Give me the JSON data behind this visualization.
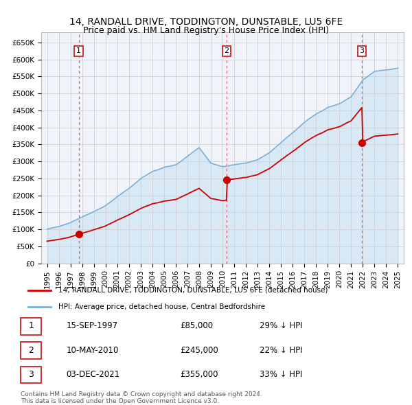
{
  "title": "14, RANDALL DRIVE, TODDINGTON, DUNSTABLE, LU5 6FE",
  "subtitle": "Price paid vs. HM Land Registry's House Price Index (HPI)",
  "title_fontsize": 10.5,
  "subtitle_fontsize": 9.5,
  "xlim": [
    1994.5,
    2025.5
  ],
  "ylim": [
    0,
    680000
  ],
  "yticks": [
    0,
    50000,
    100000,
    150000,
    200000,
    250000,
    300000,
    350000,
    400000,
    450000,
    500000,
    550000,
    600000,
    650000
  ],
  "ytick_labels": [
    "£0",
    "£50K",
    "£100K",
    "£150K",
    "£200K",
    "£250K",
    "£300K",
    "£350K",
    "£400K",
    "£450K",
    "£500K",
    "£550K",
    "£600K",
    "£650K"
  ],
  "xticks": [
    1995,
    1996,
    1997,
    1998,
    1999,
    2000,
    2001,
    2002,
    2003,
    2004,
    2005,
    2006,
    2007,
    2008,
    2009,
    2010,
    2011,
    2012,
    2013,
    2014,
    2015,
    2016,
    2017,
    2018,
    2019,
    2020,
    2021,
    2022,
    2023,
    2024,
    2025
  ],
  "sales": [
    {
      "date": 1997.71,
      "price": 85000,
      "label": "1",
      "text_date": "15-SEP-1997",
      "text_price": "£85,000",
      "text_hpi": "29% ↓ HPI"
    },
    {
      "date": 2010.36,
      "price": 245000,
      "label": "2",
      "text_date": "10-MAY-2010",
      "text_price": "£245,000",
      "text_hpi": "22% ↓ HPI"
    },
    {
      "date": 2021.92,
      "price": 355000,
      "label": "3",
      "text_date": "03-DEC-2021",
      "text_price": "£355,000",
      "text_hpi": "33% ↓ HPI"
    }
  ],
  "property_line_color": "#cc0000",
  "hpi_line_color": "#7ab0d4",
  "hpi_fill_color": "#d8e8f5",
  "grid_color": "#d0d0d0",
  "plot_bg_color": "#f0f4fa",
  "legend_label_property": "14, RANDALL DRIVE, TODDINGTON, DUNSTABLE, LU5 6FE (detached house)",
  "legend_label_hpi": "HPI: Average price, detached house, Central Bedfordshire",
  "footer1": "Contains HM Land Registry data © Crown copyright and database right 2024.",
  "footer2": "This data is licensed under the Open Government Licence v3.0.",
  "hpi_nodes_t": [
    1995,
    1996,
    1997,
    1998,
    1999,
    2000,
    2001,
    2002,
    2003,
    2004,
    2005,
    2006,
    2007,
    2008,
    2009,
    2010,
    2011,
    2012,
    2013,
    2014,
    2015,
    2016,
    2017,
    2018,
    2019,
    2020,
    2021,
    2022,
    2023,
    2024,
    2025
  ],
  "hpi_nodes_v": [
    100000,
    108000,
    120000,
    136000,
    152000,
    170000,
    195000,
    220000,
    248000,
    270000,
    282000,
    290000,
    315000,
    340000,
    295000,
    285000,
    290000,
    295000,
    305000,
    325000,
    355000,
    385000,
    415000,
    440000,
    460000,
    470000,
    490000,
    540000,
    565000,
    570000,
    575000
  ]
}
